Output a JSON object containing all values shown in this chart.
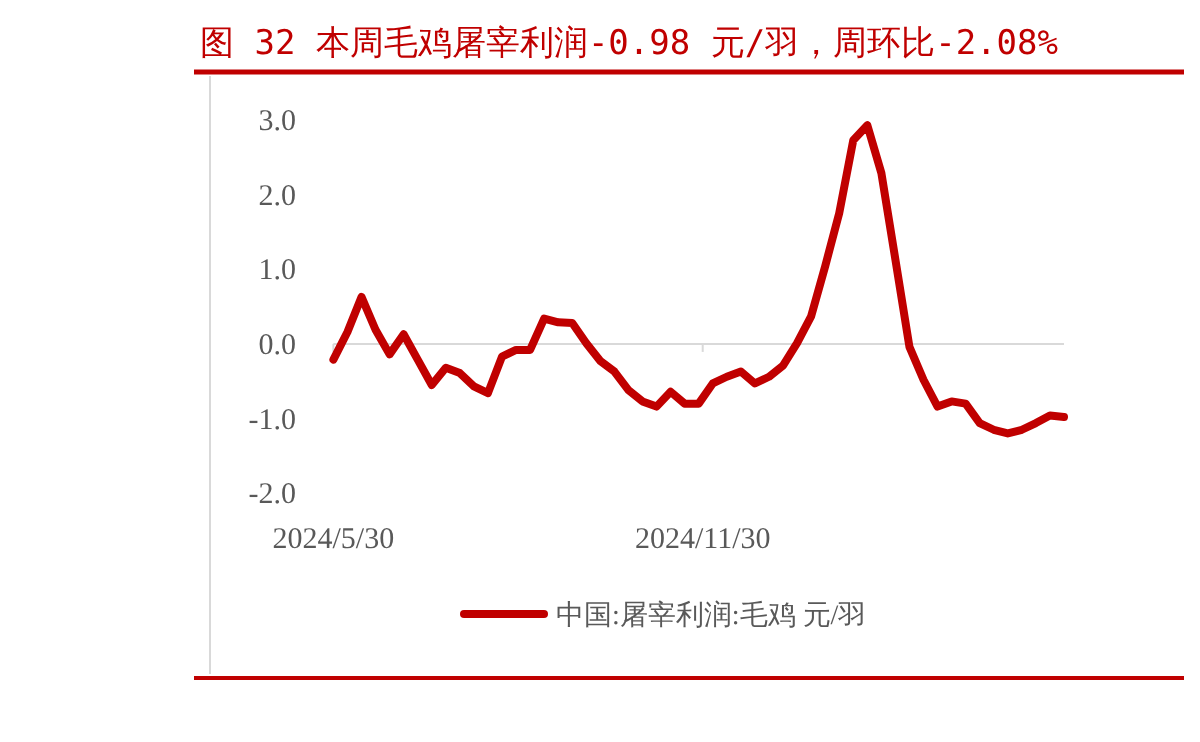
{
  "chart_data": {
    "type": "line",
    "title": "图 32 本周毛鸡屠宰利润-0.98 元/羽，周环比-2.08%",
    "x": [
      "2024-05-30",
      "2024-06-06",
      "2024-06-13",
      "2024-06-20",
      "2024-06-27",
      "2024-07-04",
      "2024-07-11",
      "2024-07-18",
      "2024-07-25",
      "2024-08-01",
      "2024-08-08",
      "2024-08-15",
      "2024-08-22",
      "2024-08-29",
      "2024-09-05",
      "2024-09-12",
      "2024-09-19",
      "2024-09-26",
      "2024-10-03",
      "2024-10-10",
      "2024-10-17",
      "2024-10-24",
      "2024-10-31",
      "2024-11-07",
      "2024-11-14",
      "2024-11-21",
      "2024-11-28",
      "2024-12-05",
      "2024-12-12",
      "2024-12-19",
      "2024-12-26",
      "2025-01-02",
      "2025-01-09",
      "2025-01-16",
      "2025-01-23",
      "2025-01-30",
      "2025-02-06",
      "2025-02-13",
      "2025-02-20",
      "2025-02-27",
      "2025-03-06",
      "2025-03-13",
      "2025-03-20",
      "2025-03-27",
      "2025-04-03",
      "2025-04-10",
      "2025-04-17",
      "2025-04-24",
      "2025-05-01",
      "2025-05-08",
      "2025-05-15",
      "2025-05-22",
      "2025-05-29"
    ],
    "series": [
      {
        "name": "中国:屠宰利润:毛鸡 元/羽",
        "color": "#c00000",
        "values": [
          -0.21,
          0.16,
          0.63,
          0.19,
          -0.14,
          0.13,
          -0.21,
          -0.55,
          -0.32,
          -0.39,
          -0.57,
          -0.66,
          -0.17,
          -0.08,
          -0.08,
          0.34,
          0.29,
          0.28,
          0.01,
          -0.23,
          -0.37,
          -0.62,
          -0.77,
          -0.84,
          -0.64,
          -0.8,
          -0.8,
          -0.53,
          -0.44,
          -0.37,
          -0.53,
          -0.44,
          -0.29,
          0.01,
          0.37,
          1.04,
          1.75,
          2.73,
          2.93,
          2.29,
          1.13,
          -0.04,
          -0.48,
          -0.84,
          -0.77,
          -0.8,
          -1.06,
          -1.15,
          -1.2,
          -1.15,
          -1.06,
          -0.96,
          -0.98
        ]
      }
    ],
    "xlim": [
      "2024-05-30",
      "2025-05-29"
    ],
    "xticks": [
      {
        "value": "2024-05-30",
        "label": "2024/5/30"
      },
      {
        "value": "2024-11-30",
        "label": "2024/11/30"
      }
    ],
    "ylim": [
      -2,
      3
    ],
    "yticks": [
      {
        "value": -2,
        "label": "-2.0"
      },
      {
        "value": -1,
        "label": "-1.0"
      },
      {
        "value": 0,
        "label": "0.0"
      },
      {
        "value": 1,
        "label": "1.0"
      },
      {
        "value": 2,
        "label": "2.0"
      },
      {
        "value": 3,
        "label": "3.0"
      }
    ],
    "legend": "bottom",
    "marker": "none",
    "line_style": "solid"
  }
}
